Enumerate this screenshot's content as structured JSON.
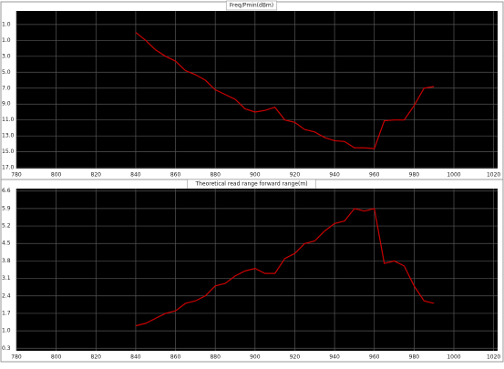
{
  "chart_data": [
    {
      "type": "line",
      "title": "Freq/Pmin(dBm)",
      "x": [
        840,
        845,
        850,
        855,
        860,
        865,
        870,
        875,
        880,
        885,
        890,
        895,
        900,
        905,
        910,
        915,
        920,
        925,
        930,
        935,
        940,
        945,
        950,
        955,
        960,
        965,
        970,
        975,
        980,
        985,
        990
      ],
      "series": [
        {
          "color": "#c80000",
          "values": [
            0.0,
            -1.0,
            -2.2,
            -3.0,
            -3.6,
            -4.8,
            -5.3,
            -6.0,
            -7.2,
            -7.8,
            -8.4,
            -9.6,
            -10.0,
            -9.8,
            -9.4,
            -11.0,
            -11.3,
            -12.2,
            -12.5,
            -13.2,
            -13.6,
            -13.7,
            -14.5,
            -14.5,
            -14.6,
            -11.1,
            -11.0,
            -11.0,
            -9.2,
            -7.0,
            -6.8
          ]
        }
      ],
      "xlim": [
        780,
        1022
      ],
      "xticks": [
        780,
        800,
        820,
        840,
        860,
        880,
        900,
        920,
        940,
        960,
        980,
        1000,
        1020
      ],
      "ylim": [
        -17.1,
        2.7
      ],
      "yticks": [
        {
          "value": 1,
          "label": "1.0"
        },
        {
          "value": -1,
          "label": "1.0"
        },
        {
          "value": -3,
          "label": "3.0"
        },
        {
          "value": -5,
          "label": "5.0"
        },
        {
          "value": -7,
          "label": "7.0"
        },
        {
          "value": -9,
          "label": "9.0"
        },
        {
          "value": -11,
          "label": "11.0"
        },
        {
          "value": -13,
          "label": "13.0"
        },
        {
          "value": -15,
          "label": "15.0"
        },
        {
          "value": -17,
          "label": "17.0"
        }
      ],
      "grid": true
    },
    {
      "type": "line",
      "title": "Theoretical read range forward range(m)",
      "x": [
        840,
        845,
        850,
        855,
        860,
        865,
        870,
        875,
        880,
        885,
        890,
        895,
        900,
        905,
        910,
        915,
        920,
        925,
        930,
        935,
        940,
        945,
        950,
        955,
        960,
        965,
        970,
        975,
        980,
        985,
        990
      ],
      "series": [
        {
          "color": "#c80000",
          "values": [
            1.2,
            1.3,
            1.5,
            1.7,
            1.8,
            2.1,
            2.2,
            2.4,
            2.8,
            2.9,
            3.2,
            3.4,
            3.5,
            3.3,
            3.3,
            3.9,
            4.1,
            4.5,
            4.6,
            5.0,
            5.3,
            5.4,
            5.9,
            5.8,
            5.9,
            3.7,
            3.8,
            3.6,
            2.8,
            2.2,
            2.1
          ]
        }
      ],
      "xlim": [
        780,
        1022
      ],
      "xticks": [
        780,
        800,
        820,
        840,
        860,
        880,
        900,
        920,
        940,
        960,
        980,
        1000,
        1020
      ],
      "ylim": [
        0.2,
        6.7
      ],
      "yticks": [
        6.6,
        5.9,
        5.2,
        4.5,
        3.8,
        3.1,
        2.4,
        1.7,
        {
          "value": 1,
          "label": "1.0"
        },
        0.3
      ],
      "grid": true
    }
  ]
}
